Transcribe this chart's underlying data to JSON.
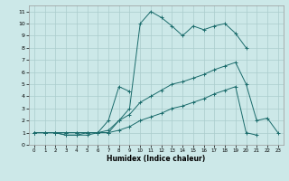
{
  "title": "",
  "xlabel": "Humidex (Indice chaleur)",
  "bg_color": "#cce8e8",
  "grid_color": "#aacccc",
  "line_color": "#1a6b6b",
  "xlim": [
    -0.5,
    23.5
  ],
  "ylim": [
    0,
    11.5
  ],
  "xticks": [
    0,
    1,
    2,
    3,
    4,
    5,
    6,
    7,
    8,
    9,
    10,
    11,
    12,
    13,
    14,
    15,
    16,
    17,
    18,
    19,
    20,
    21,
    22,
    23
  ],
  "yticks": [
    0,
    1,
    2,
    3,
    4,
    5,
    6,
    7,
    8,
    9,
    10,
    11
  ],
  "line1_x": [
    0,
    1,
    2,
    3,
    4,
    5,
    6,
    7,
    8,
    9,
    10,
    11,
    12,
    13,
    14,
    15,
    16,
    17,
    18,
    19,
    20
  ],
  "line1_y": [
    1,
    1,
    1,
    0.8,
    0.8,
    0.8,
    1,
    1,
    2,
    3,
    10,
    11,
    10.5,
    9.8,
    9,
    9.8,
    9.5,
    9.8,
    10,
    9.2,
    8
  ],
  "line2_x": [
    0,
    1,
    2,
    3,
    4,
    5,
    6,
    7,
    8,
    9
  ],
  "line2_y": [
    1,
    1,
    1,
    0.8,
    0.8,
    1,
    1,
    2,
    4.8,
    4.4
  ],
  "line3_x": [
    0,
    1,
    2,
    3,
    4,
    5,
    6,
    7,
    8,
    9,
    10,
    11,
    12,
    13,
    14,
    15,
    16,
    17,
    18,
    19,
    20,
    21,
    22,
    23
  ],
  "line3_y": [
    1,
    1,
    1,
    1,
    1,
    1,
    1,
    1.2,
    2,
    2.5,
    3.5,
    4,
    4.5,
    5,
    5.2,
    5.5,
    5.8,
    6.2,
    6.5,
    6.8,
    5,
    2,
    2.2,
    1
  ],
  "line4_x": [
    0,
    1,
    2,
    3,
    4,
    5,
    6,
    7,
    8,
    9,
    10,
    11,
    12,
    13,
    14,
    15,
    16,
    17,
    18,
    19,
    20,
    21
  ],
  "line4_y": [
    1,
    1,
    1,
    1,
    1,
    1,
    1,
    1,
    1.2,
    1.5,
    2,
    2.3,
    2.6,
    3,
    3.2,
    3.5,
    3.8,
    4.2,
    4.5,
    4.8,
    1,
    0.8
  ]
}
